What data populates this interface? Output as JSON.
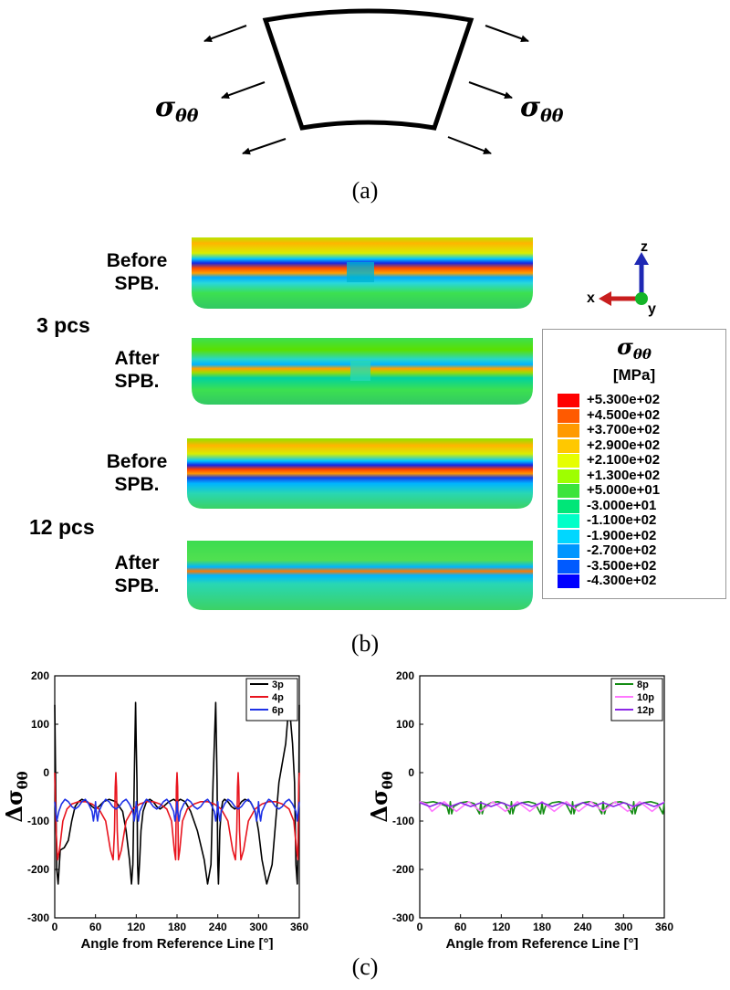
{
  "panel_a": {
    "caption": "(a)",
    "sigma_symbol": "σ",
    "sigma_subscript": "θθ"
  },
  "panel_b": {
    "caption": "(b)",
    "groups": [
      {
        "pcs_label": "3 pcs",
        "before_label": [
          "Before",
          "SPB."
        ],
        "after_label": [
          "After",
          "SPB."
        ]
      },
      {
        "pcs_label": "12 pcs",
        "before_label": [
          "Before",
          "SPB."
        ],
        "after_label": [
          "After",
          "SPB."
        ]
      }
    ],
    "triad": {
      "z": "z",
      "x": "x",
      "y": "y"
    },
    "legend": {
      "symbol": "σ",
      "subscript": "θθ",
      "unit": "[MPa]",
      "levels": [
        {
          "label": "+5.300e+02",
          "color": "#ff0000"
        },
        {
          "label": "+4.500e+02",
          "color": "#ff5a00"
        },
        {
          "label": "+3.700e+02",
          "color": "#ff9a00"
        },
        {
          "label": "+2.900e+02",
          "color": "#ffc800"
        },
        {
          "label": "+2.100e+02",
          "color": "#e6ff00"
        },
        {
          "label": "+1.300e+02",
          "color": "#9eff00"
        },
        {
          "label": "+5.000e+01",
          "color": "#3ce43c"
        },
        {
          "label": "-3.000e+01",
          "color": "#00e678"
        },
        {
          "label": "-1.100e+02",
          "color": "#00ffc8"
        },
        {
          "label": "-1.900e+02",
          "color": "#00d7ff"
        },
        {
          "label": "-2.700e+02",
          "color": "#0096ff"
        },
        {
          "label": "-3.500e+02",
          "color": "#005aff"
        },
        {
          "label": "-4.300e+02",
          "color": "#0000ff"
        }
      ]
    }
  },
  "panel_c": {
    "caption": "(c)",
    "ylabel_prefix": "Δσ",
    "ylabel_subscript": "θθ"
  },
  "chart_data": [
    {
      "type": "line",
      "xlabel": "Angle from Reference Line [°]",
      "ylabel": "Δσθθ",
      "xlim": [
        0,
        360
      ],
      "ylim": [
        -300,
        200
      ],
      "xticks": [
        0,
        60,
        120,
        180,
        240,
        300,
        360
      ],
      "yticks": [
        200,
        100,
        0,
        -100,
        -200,
        -300
      ],
      "legend_position": "top-right",
      "series": [
        {
          "name": "3p",
          "color": "#000000",
          "x": [
            0,
            2,
            3,
            5,
            8,
            14,
            20,
            25,
            30,
            35,
            40,
            48,
            55,
            60,
            65,
            72,
            80,
            90,
            100,
            105,
            110,
            113,
            115,
            117,
            118,
            119,
            120,
            121,
            122,
            123,
            125,
            127,
            130,
            135,
            140,
            145,
            150,
            155,
            160,
            168,
            175,
            180,
            185,
            192,
            200,
            210,
            220,
            225,
            230,
            233,
            235,
            237,
            238,
            239,
            240,
            241,
            242,
            243,
            245,
            247,
            250,
            255,
            260,
            265,
            270,
            275,
            280,
            288,
            295,
            300,
            305,
            312,
            320,
            330,
            340,
            345,
            350,
            353,
            355,
            357,
            358,
            359,
            360
          ],
          "y": [
            140,
            -100,
            -200,
            -230,
            -160,
            -155,
            -140,
            -100,
            -70,
            -60,
            -55,
            -60,
            -70,
            -75,
            -70,
            -60,
            -55,
            -60,
            -80,
            -120,
            -180,
            -230,
            -190,
            -20,
            60,
            145,
            60,
            -20,
            -190,
            -230,
            -180,
            -120,
            -80,
            -60,
            -55,
            -60,
            -70,
            -75,
            -70,
            -60,
            -55,
            -60,
            -55,
            -60,
            -80,
            -120,
            -180,
            -230,
            -190,
            -20,
            60,
            145,
            60,
            -20,
            -190,
            -230,
            -180,
            -120,
            -80,
            -60,
            -55,
            -60,
            -70,
            -75,
            -70,
            -60,
            -55,
            -60,
            -80,
            -120,
            -180,
            -230,
            -190,
            -20,
            60,
            145,
            60,
            -20,
            -190,
            -230,
            -160,
            -100,
            140
          ]
        },
        {
          "name": "4p",
          "color": "#e8141e",
          "x": [
            0,
            2,
            4,
            7,
            12,
            18,
            25,
            35,
            45,
            55,
            65,
            75,
            82,
            86,
            88,
            89,
            90,
            91,
            92,
            94,
            98,
            105,
            115,
            125,
            135,
            145,
            155,
            165,
            172,
            176,
            178,
            179,
            180,
            181,
            182,
            184,
            188,
            195,
            205,
            215,
            225,
            235,
            245,
            255,
            262,
            266,
            268,
            269,
            270,
            271,
            272,
            274,
            278,
            285,
            295,
            305,
            315,
            325,
            335,
            345,
            352,
            356,
            358,
            359,
            360
          ],
          "y": [
            0,
            -120,
            -180,
            -160,
            -100,
            -75,
            -65,
            -60,
            -60,
            -65,
            -75,
            -100,
            -160,
            -180,
            -120,
            -30,
            0,
            -30,
            -120,
            -180,
            -160,
            -100,
            -75,
            -65,
            -60,
            -60,
            -65,
            -75,
            -100,
            -160,
            -180,
            -30,
            0,
            -30,
            -180,
            -160,
            -100,
            -75,
            -65,
            -60,
            -60,
            -65,
            -75,
            -100,
            -160,
            -180,
            -120,
            -30,
            0,
            -30,
            -120,
            -180,
            -160,
            -100,
            -75,
            -65,
            -60,
            -60,
            -65,
            -75,
            -100,
            -160,
            -180,
            -30,
            0
          ]
        },
        {
          "name": "6p",
          "color": "#1e32e6",
          "x": [
            0,
            3,
            6,
            10,
            15,
            20,
            25,
            30,
            35,
            40,
            45,
            50,
            55,
            57,
            59,
            60,
            61,
            63,
            65,
            70,
            75,
            80,
            85,
            90,
            95,
            100,
            105,
            110,
            115,
            117,
            119,
            120,
            121,
            123,
            125,
            130,
            135,
            140,
            145,
            150,
            155,
            160,
            165,
            170,
            175,
            177,
            179,
            180,
            181,
            183,
            185,
            190,
            195,
            200,
            205,
            210,
            215,
            220,
            225,
            230,
            235,
            237,
            239,
            240,
            241,
            243,
            245,
            250,
            255,
            260,
            265,
            270,
            275,
            280,
            285,
            290,
            295,
            297,
            299,
            300,
            301,
            303,
            305,
            310,
            315,
            320,
            325,
            330,
            335,
            340,
            345,
            350,
            355,
            357,
            360
          ],
          "y": [
            -60,
            -100,
            -80,
            -65,
            -55,
            -60,
            -70,
            -75,
            -70,
            -60,
            -55,
            -65,
            -80,
            -100,
            -80,
            -60,
            -80,
            -100,
            -80,
            -65,
            -55,
            -60,
            -70,
            -75,
            -70,
            -60,
            -55,
            -65,
            -80,
            -100,
            -80,
            -60,
            -80,
            -100,
            -80,
            -65,
            -55,
            -60,
            -70,
            -75,
            -70,
            -60,
            -55,
            -65,
            -80,
            -100,
            -80,
            -60,
            -80,
            -100,
            -80,
            -65,
            -55,
            -60,
            -70,
            -75,
            -70,
            -60,
            -55,
            -65,
            -80,
            -100,
            -80,
            -60,
            -80,
            -100,
            -80,
            -65,
            -55,
            -60,
            -70,
            -75,
            -70,
            -60,
            -55,
            -65,
            -80,
            -100,
            -80,
            -60,
            -80,
            -100,
            -80,
            -65,
            -55,
            -60,
            -70,
            -75,
            -70,
            -60,
            -55,
            -65,
            -80,
            -100,
            -60
          ]
        }
      ]
    },
    {
      "type": "line",
      "xlabel": "Angle from Reference Line [°]",
      "ylabel": "Δσθθ",
      "xlim": [
        0,
        360
      ],
      "ylim": [
        -300,
        200
      ],
      "xticks": [
        0,
        60,
        120,
        180,
        240,
        300,
        360
      ],
      "yticks": [
        200,
        100,
        0,
        -100,
        -200,
        -300
      ],
      "legend_position": "top-right",
      "series": [
        {
          "name": "8p",
          "color": "#148c14",
          "x": [
            0,
            10,
            20,
            30,
            40,
            43,
            45,
            47,
            50,
            60,
            70,
            80,
            88,
            90,
            92,
            95,
            105,
            115,
            125,
            133,
            135,
            137,
            140,
            150,
            160,
            170,
            178,
            180,
            182,
            185,
            195,
            205,
            215,
            223,
            225,
            227,
            230,
            240,
            250,
            260,
            268,
            270,
            272,
            275,
            285,
            295,
            305,
            313,
            315,
            317,
            320,
            330,
            340,
            350,
            358,
            360
          ],
          "y": [
            -60,
            -62,
            -60,
            -64,
            -70,
            -85,
            -60,
            -85,
            -70,
            -62,
            -60,
            -64,
            -85,
            -60,
            -85,
            -70,
            -62,
            -60,
            -64,
            -85,
            -60,
            -85,
            -70,
            -62,
            -60,
            -64,
            -85,
            -60,
            -85,
            -70,
            -62,
            -60,
            -64,
            -85,
            -60,
            -85,
            -70,
            -62,
            -60,
            -64,
            -85,
            -60,
            -85,
            -70,
            -62,
            -60,
            -64,
            -85,
            -60,
            -85,
            -70,
            -62,
            -60,
            -64,
            -85,
            -60
          ]
        },
        {
          "name": "10p",
          "color": "#ff78ff",
          "x": [
            0,
            10,
            18,
            36,
            40,
            54,
            72,
            76,
            90,
            108,
            112,
            126,
            144,
            148,
            162,
            180,
            184,
            198,
            216,
            220,
            234,
            252,
            256,
            270,
            288,
            292,
            306,
            324,
            328,
            342,
            360
          ],
          "y": [
            -60,
            -65,
            -80,
            -60,
            -65,
            -80,
            -60,
            -65,
            -80,
            -60,
            -65,
            -80,
            -60,
            -65,
            -80,
            -60,
            -65,
            -80,
            -60,
            -65,
            -80,
            -60,
            -65,
            -80,
            -60,
            -65,
            -80,
            -60,
            -65,
            -80,
            -60
          ]
        },
        {
          "name": "12p",
          "color": "#8c28e6",
          "x": [
            0,
            15,
            30,
            45,
            60,
            75,
            90,
            105,
            120,
            135,
            150,
            165,
            180,
            195,
            210,
            225,
            240,
            255,
            270,
            285,
            300,
            315,
            330,
            345,
            360
          ],
          "y": [
            -62,
            -70,
            -62,
            -70,
            -62,
            -70,
            -62,
            -70,
            -62,
            -70,
            -62,
            -70,
            -62,
            -70,
            -62,
            -70,
            -62,
            -70,
            -62,
            -70,
            -62,
            -70,
            -62,
            -70,
            -62
          ]
        }
      ]
    }
  ]
}
